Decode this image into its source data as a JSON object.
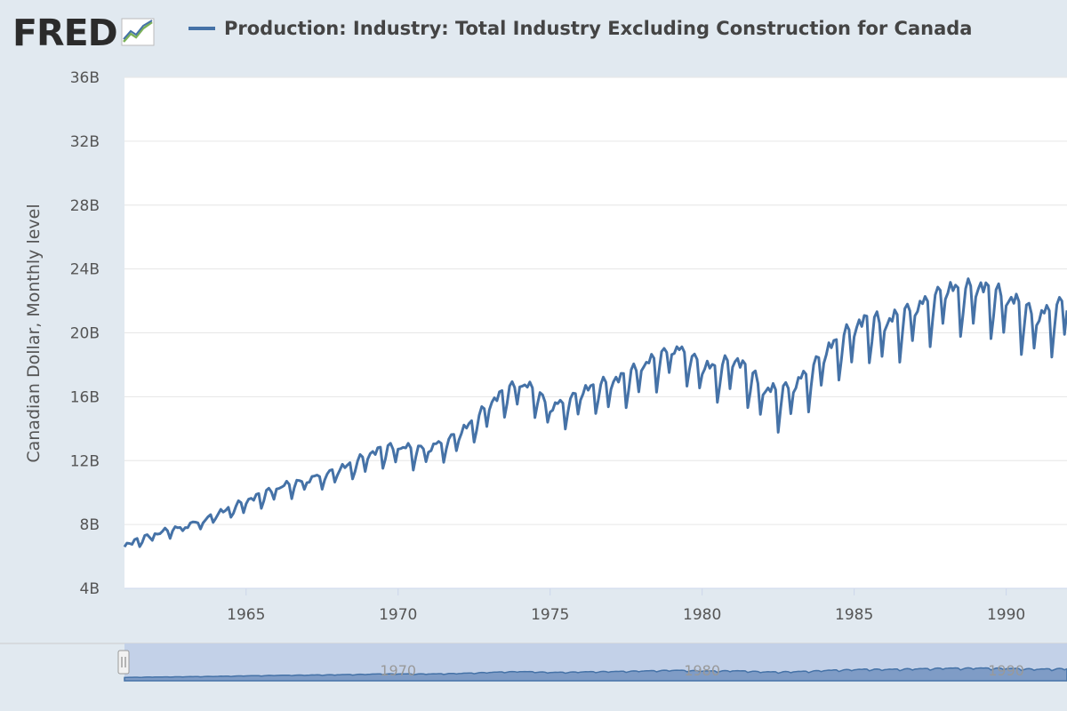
{
  "header": {
    "logo_text": "FRED",
    "logo_icon": "chart-trend-icon",
    "legend_label": "Production: Industry: Total Industry Excluding Construction for Canada"
  },
  "colors": {
    "series": "#4572a7",
    "background": "#e1e9f0",
    "plot": "#ffffff",
    "grid": "#e6e6e6",
    "navigator_fill": "#c3d1e8"
  },
  "chart_data": {
    "type": "line",
    "title": "",
    "xlabel": "",
    "ylabel": "Canadian Dollar, Monthly level",
    "xlim": [
      1961.0,
      1992.0
    ],
    "ylim": [
      4000000000,
      36000000000
    ],
    "yticks": [
      {
        "value": 4000000000,
        "label": "4B"
      },
      {
        "value": 8000000000,
        "label": "8B"
      },
      {
        "value": 12000000000,
        "label": "12B"
      },
      {
        "value": 16000000000,
        "label": "16B"
      },
      {
        "value": 20000000000,
        "label": "20B"
      },
      {
        "value": 24000000000,
        "label": "24B"
      },
      {
        "value": 28000000000,
        "label": "28B"
      },
      {
        "value": 32000000000,
        "label": "32B"
      },
      {
        "value": 36000000000,
        "label": "36B"
      }
    ],
    "xticks": [
      {
        "value": 1965,
        "label": "1965"
      },
      {
        "value": 1970,
        "label": "1970"
      },
      {
        "value": 1975,
        "label": "1975"
      },
      {
        "value": 1980,
        "label": "1980"
      },
      {
        "value": 1985,
        "label": "1985"
      },
      {
        "value": 1990,
        "label": "1990"
      }
    ],
    "grid": true,
    "series": [
      {
        "name": "Production: Industry: Total Industry Excluding Construction for Canada",
        "color": "#4572a7",
        "unit": "billions CAD",
        "x": [
          1961.0,
          1961.5,
          1962.0,
          1962.5,
          1963.0,
          1963.5,
          1964.0,
          1964.5,
          1965.0,
          1965.5,
          1966.0,
          1966.5,
          1967.0,
          1967.5,
          1968.0,
          1968.5,
          1969.0,
          1969.5,
          1970.0,
          1970.5,
          1971.0,
          1971.5,
          1972.0,
          1972.5,
          1973.0,
          1973.5,
          1974.0,
          1974.5,
          1975.0,
          1975.5,
          1976.0,
          1976.5,
          1977.0,
          1977.5,
          1978.0,
          1978.5,
          1979.0,
          1979.5,
          1980.0,
          1980.5,
          1981.0,
          1981.5,
          1982.0,
          1982.5,
          1983.0,
          1983.5,
          1984.0,
          1984.5,
          1985.0,
          1985.5,
          1986.0,
          1986.5,
          1987.0,
          1987.5,
          1988.0,
          1988.5,
          1989.0,
          1989.5,
          1990.0,
          1990.5,
          1991.0,
          1991.5,
          1992.0
        ],
        "y": [
          6.6,
          7.0,
          7.3,
          7.6,
          7.8,
          8.1,
          8.5,
          8.9,
          9.3,
          9.7,
          10.1,
          10.4,
          10.6,
          10.9,
          11.2,
          11.6,
          12.1,
          12.5,
          12.6,
          12.5,
          12.5,
          12.9,
          13.4,
          14.2,
          15.2,
          16.0,
          16.5,
          16.1,
          15.0,
          15.3,
          15.9,
          16.3,
          16.5,
          16.9,
          17.5,
          18.0,
          18.6,
          18.3,
          17.5,
          17.3,
          17.9,
          17.2,
          16.0,
          15.8,
          16.2,
          17.0,
          18.2,
          19.0,
          19.8,
          20.3,
          20.0,
          20.5,
          21.0,
          21.4,
          22.2,
          22.0,
          22.3,
          22.0,
          21.6,
          21.1,
          20.4,
          20.8,
          21.5
        ]
      }
    ],
    "navigator_ticks": [
      "1970",
      "1980",
      "1990"
    ]
  }
}
